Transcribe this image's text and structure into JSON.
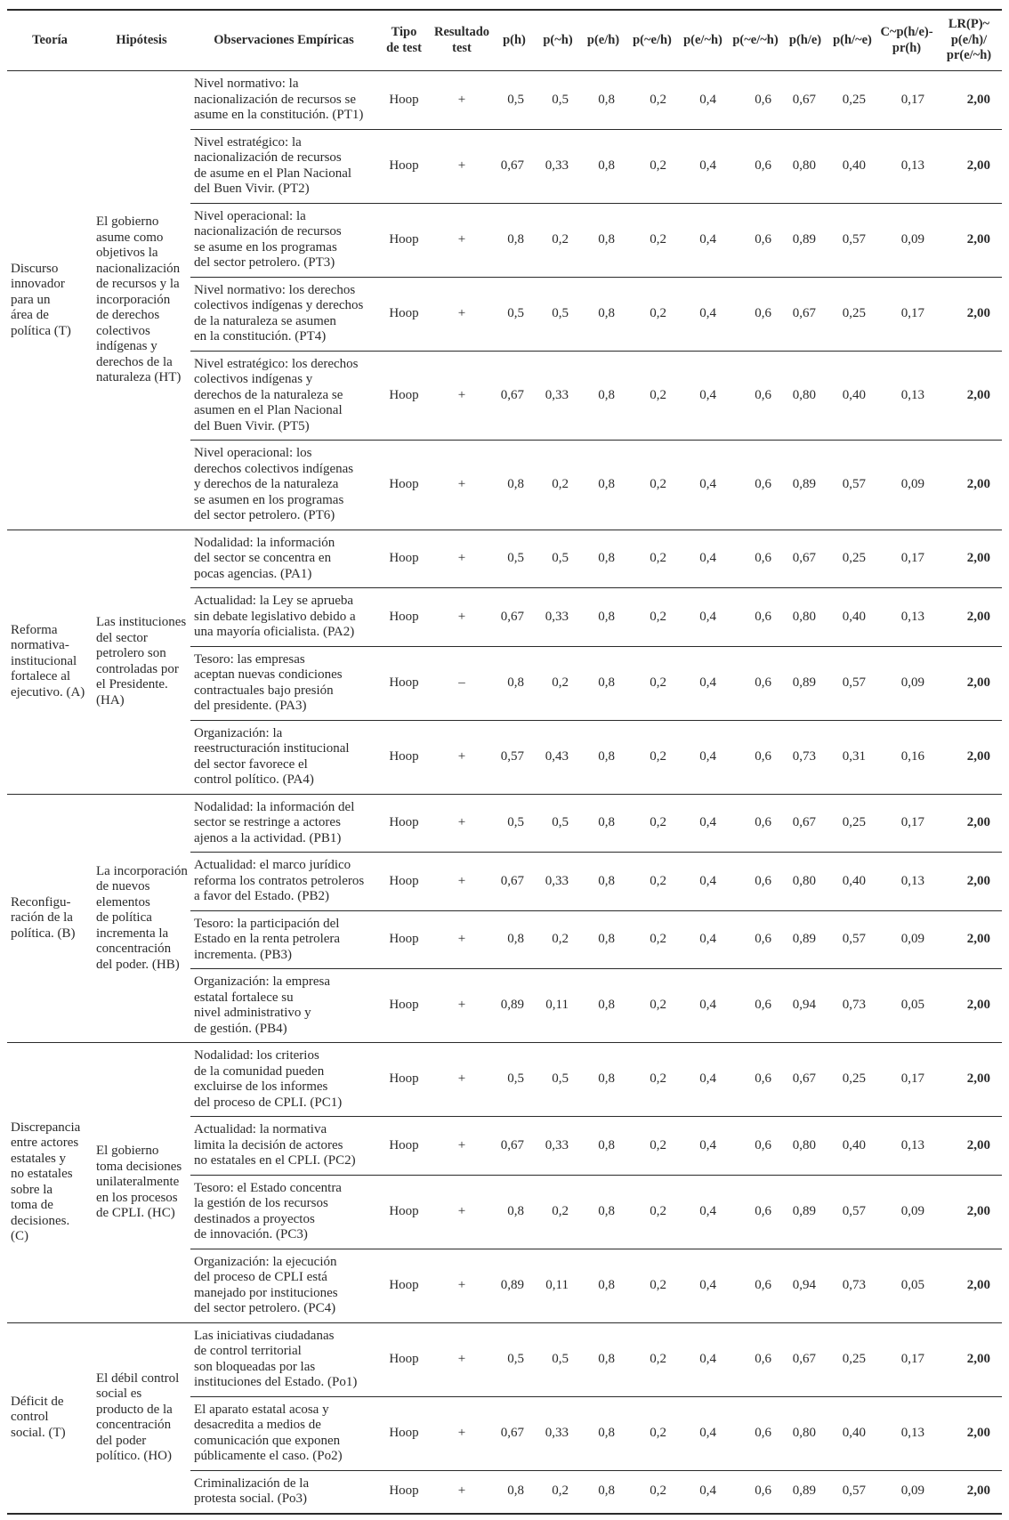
{
  "colors": {
    "text": "#2a2a2a",
    "background": "#ffffff",
    "rule": "#2a2a2a"
  },
  "table": {
    "columns": [
      "Teoría",
      "Hipótesis",
      "Observaciones Empíricas",
      "Tipo\nde test",
      "Resultado\ntest",
      "p(h)",
      "p(~h)",
      "p(e/h)",
      "p(~e/h)",
      "p(e/~h)",
      "p(~e/~h)",
      "p(h/e)",
      "p(h/~e)",
      "C~p(h/e)-\npr(h)",
      "LR(P)~\np(e/h)/\npr(e/~h)"
    ],
    "blocks": [
      {
        "teoria": "Discurso\ninnovador\npara un\nárea de\npolítica (T)",
        "hipotesis": "El gobierno\nasume como\nobjetivos la\nnacionalización\nde recursos y la\nincorporación\nde derechos\ncolectivos\nindígenas y\nderechos de la\nnaturaleza (HT)",
        "rows": [
          {
            "observacion": "Nivel normativo: la\nnacionalización de recursos se\nasume en la constitución. (PT1)",
            "tipo_test": "Hoop",
            "resultado": "+",
            "values": [
              "0,5",
              "0,5",
              "0,8",
              "0,2",
              "0,4",
              "0,6",
              "0,67",
              "0,25",
              "0,17",
              "2,00"
            ]
          },
          {
            "observacion": "Nivel estratégico: la\nnacionalización de recursos\nde asume en el Plan Nacional\ndel Buen Vivir. (PT2)",
            "tipo_test": "Hoop",
            "resultado": "+",
            "values": [
              "0,67",
              "0,33",
              "0,8",
              "0,2",
              "0,4",
              "0,6",
              "0,80",
              "0,40",
              "0,13",
              "2,00"
            ]
          },
          {
            "observacion": "Nivel operacional: la\nnacionalización de recursos\nse asume en los programas\ndel sector petrolero. (PT3)",
            "tipo_test": "Hoop",
            "resultado": "+",
            "values": [
              "0,8",
              "0,2",
              "0,8",
              "0,2",
              "0,4",
              "0,6",
              "0,89",
              "0,57",
              "0,09",
              "2,00"
            ]
          },
          {
            "observacion": "Nivel normativo: los derechos\ncolectivos indígenas y derechos\nde la naturaleza se asumen\nen la constitución. (PT4)",
            "tipo_test": "Hoop",
            "resultado": "+",
            "values": [
              "0,5",
              "0,5",
              "0,8",
              "0,2",
              "0,4",
              "0,6",
              "0,67",
              "0,25",
              "0,17",
              "2,00"
            ]
          },
          {
            "observacion": "Nivel estratégico: los derechos\ncolectivos indígenas y\nderechos de la naturaleza se\nasumen en el Plan Nacional\ndel Buen Vivir. (PT5)",
            "tipo_test": "Hoop",
            "resultado": "+",
            "values": [
              "0,67",
              "0,33",
              "0,8",
              "0,2",
              "0,4",
              "0,6",
              "0,80",
              "0,40",
              "0,13",
              "2,00"
            ]
          },
          {
            "observacion": "Nivel operacional: los\nderechos colectivos indígenas\ny derechos de la naturaleza\nse asumen en los programas\ndel sector petrolero. (PT6)",
            "tipo_test": "Hoop",
            "resultado": "+",
            "values": [
              "0,8",
              "0,2",
              "0,8",
              "0,2",
              "0,4",
              "0,6",
              "0,89",
              "0,57",
              "0,09",
              "2,00"
            ]
          }
        ]
      },
      {
        "teoria": "Reforma\nnormativa-\ninstitucional\nfortalece al\nejecutivo. (A)",
        "hipotesis": "Las instituciones\ndel sector\npetrolero son\ncontroladas por\nel Presidente.\n(HA)",
        "rows": [
          {
            "observacion": "Nodalidad: la información\ndel sector se concentra en\npocas agencias. (PA1)",
            "tipo_test": "Hoop",
            "resultado": "+",
            "values": [
              "0,5",
              "0,5",
              "0,8",
              "0,2",
              "0,4",
              "0,6",
              "0,67",
              "0,25",
              "0,17",
              "2,00"
            ]
          },
          {
            "observacion": "Actualidad: la Ley se aprueba\nsin debate legislativo debido a\nuna mayoría oficialista. (PA2)",
            "tipo_test": "Hoop",
            "resultado": "+",
            "values": [
              "0,67",
              "0,33",
              "0,8",
              "0,2",
              "0,4",
              "0,6",
              "0,80",
              "0,40",
              "0,13",
              "2,00"
            ]
          },
          {
            "observacion": "Tesoro: las empresas\naceptan nuevas condiciones\ncontractuales bajo presión\ndel presidente. (PA3)",
            "tipo_test": "Hoop",
            "resultado": "–",
            "values": [
              "0,8",
              "0,2",
              "0,8",
              "0,2",
              "0,4",
              "0,6",
              "0,89",
              "0,57",
              "0,09",
              "2,00"
            ]
          },
          {
            "observacion": "Organización: la\nreestructuración institucional\ndel sector favorece el\ncontrol político. (PA4)",
            "tipo_test": "Hoop",
            "resultado": "+",
            "values": [
              "0,57",
              "0,43",
              "0,8",
              "0,2",
              "0,4",
              "0,6",
              "0,73",
              "0,31",
              "0,16",
              "2,00"
            ]
          }
        ]
      },
      {
        "teoria": "Reconfigu-\nración de la\npolítica. (B)",
        "hipotesis": "La incorporación\nde nuevos\nelementos\nde política\nincrementa la\nconcentración\ndel poder. (HB)",
        "rows": [
          {
            "observacion": "Nodalidad: la información del\nsector se restringe a actores\najenos a la actividad. (PB1)",
            "tipo_test": "Hoop",
            "resultado": "+",
            "values": [
              "0,5",
              "0,5",
              "0,8",
              "0,2",
              "0,4",
              "0,6",
              "0,67",
              "0,25",
              "0,17",
              "2,00"
            ]
          },
          {
            "observacion": "Actualidad: el marco jurídico\nreforma los contratos petroleros\na favor del Estado. (PB2)",
            "tipo_test": "Hoop",
            "resultado": "+",
            "values": [
              "0,67",
              "0,33",
              "0,8",
              "0,2",
              "0,4",
              "0,6",
              "0,80",
              "0,40",
              "0,13",
              "2,00"
            ]
          },
          {
            "observacion": "Tesoro: la participación del\nEstado en la renta petrolera\nincrementa. (PB3)",
            "tipo_test": "Hoop",
            "resultado": "+",
            "values": [
              "0,8",
              "0,2",
              "0,8",
              "0,2",
              "0,4",
              "0,6",
              "0,89",
              "0,57",
              "0,09",
              "2,00"
            ]
          },
          {
            "observacion": "Organización: la empresa\nestatal fortalece su\nnivel administrativo y\nde gestión. (PB4)",
            "tipo_test": "Hoop",
            "resultado": "+",
            "values": [
              "0,89",
              "0,11",
              "0,8",
              "0,2",
              "0,4",
              "0,6",
              "0,94",
              "0,73",
              "0,05",
              "2,00"
            ]
          }
        ]
      },
      {
        "teoria": "Discrepancia\nentre actores\nestatales y\nno estatales\nsobre la\ntoma de\ndecisiones.\n(C)",
        "hipotesis": "El gobierno\ntoma decisiones\nunilateralmente\nen los procesos\nde CPLI. (HC)",
        "rows": [
          {
            "observacion": "Nodalidad: los criterios\nde la comunidad pueden\nexcluirse de los informes\ndel proceso de CPLI. (PC1)",
            "tipo_test": "Hoop",
            "resultado": "+",
            "values": [
              "0,5",
              "0,5",
              "0,8",
              "0,2",
              "0,4",
              "0,6",
              "0,67",
              "0,25",
              "0,17",
              "2,00"
            ]
          },
          {
            "observacion": "Actualidad: la normativa\nlimita la decisión de actores\nno estatales en el CPLI. (PC2)",
            "tipo_test": "Hoop",
            "resultado": "+",
            "values": [
              "0,67",
              "0,33",
              "0,8",
              "0,2",
              "0,4",
              "0,6",
              "0,80",
              "0,40",
              "0,13",
              "2,00"
            ]
          },
          {
            "observacion": "Tesoro: el Estado concentra\nla gestión de los recursos\ndestinados a proyectos\nde innovación. (PC3)",
            "tipo_test": "Hoop",
            "resultado": "+",
            "values": [
              "0,8",
              "0,2",
              "0,8",
              "0,2",
              "0,4",
              "0,6",
              "0,89",
              "0,57",
              "0,09",
              "2,00"
            ]
          },
          {
            "observacion": "Organización: la ejecución\ndel proceso de CPLI está\nmanejado por instituciones\ndel sector petrolero. (PC4)",
            "tipo_test": "Hoop",
            "resultado": "+",
            "values": [
              "0,89",
              "0,11",
              "0,8",
              "0,2",
              "0,4",
              "0,6",
              "0,94",
              "0,73",
              "0,05",
              "2,00"
            ]
          }
        ]
      },
      {
        "teoria": "Déficit de\ncontrol\nsocial. (T)",
        "hipotesis": "El débil control\nsocial es\nproducto de la\nconcentración\ndel poder\npolítico. (HO)",
        "rows": [
          {
            "observacion": "Las iniciativas ciudadanas\nde control territorial\nson bloqueadas por las\ninstituciones del Estado. (Po1)",
            "tipo_test": "Hoop",
            "resultado": "+",
            "values": [
              "0,5",
              "0,5",
              "0,8",
              "0,2",
              "0,4",
              "0,6",
              "0,67",
              "0,25",
              "0,17",
              "2,00"
            ]
          },
          {
            "observacion": "El aparato estatal acosa y\ndesacredita a medios de\ncomunicación que exponen\npúblicamente el caso. (Po2)",
            "tipo_test": "Hoop",
            "resultado": "+",
            "values": [
              "0,67",
              "0,33",
              "0,8",
              "0,2",
              "0,4",
              "0,6",
              "0,80",
              "0,40",
              "0,13",
              "2,00"
            ]
          },
          {
            "observacion": "Criminalización de la\nprotesta social. (Po3)",
            "tipo_test": "Hoop",
            "resultado": "+",
            "values": [
              "0,8",
              "0,2",
              "0,8",
              "0,2",
              "0,4",
              "0,6",
              "0,89",
              "0,57",
              "0,09",
              "2,00"
            ]
          }
        ]
      }
    ]
  }
}
